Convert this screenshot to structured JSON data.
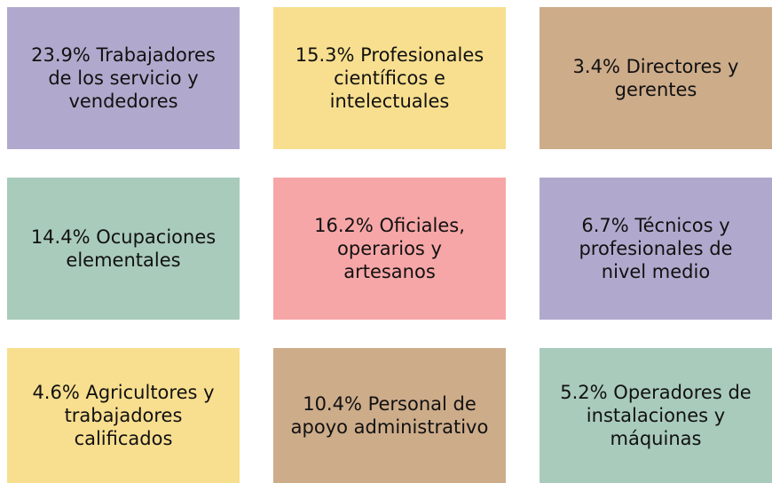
{
  "cards": [
    {
      "lines": [
        "23.9% Trabajadores",
        "de los servicio y",
        "vendedores"
      ],
      "color": "#b1a9cd"
    },
    {
      "lines": [
        "15.3% Profesionales",
        "científicos e",
        "intelectuales"
      ],
      "color": "#f8df8f"
    },
    {
      "lines": [
        "3.4% Directores y",
        "gerentes"
      ],
      "color": "#cdac8a"
    },
    {
      "lines": [
        "14.4% Ocupaciones",
        "elementales"
      ],
      "color": "#a9cbbb"
    },
    {
      "lines": [
        "16.2% Oficiales,",
        "operarios y",
        "artesanos"
      ],
      "color": "#f7a6a7"
    },
    {
      "lines": [
        "6.7% Técnicos y",
        "profesionales de",
        "nivel medio"
      ],
      "color": "#b1a9cd"
    },
    {
      "lines": [
        "4.6% Agricultores y",
        "trabajadores",
        "calificados"
      ],
      "color": "#f8df8f"
    },
    {
      "lines": [
        "10.4% Personal de",
        "apoyo administrativo"
      ],
      "color": "#cdac8a"
    },
    {
      "lines": [
        "5.2% Operadores de",
        "instalaciones y",
        "máquinas"
      ],
      "color": "#a9cbbb"
    }
  ]
}
